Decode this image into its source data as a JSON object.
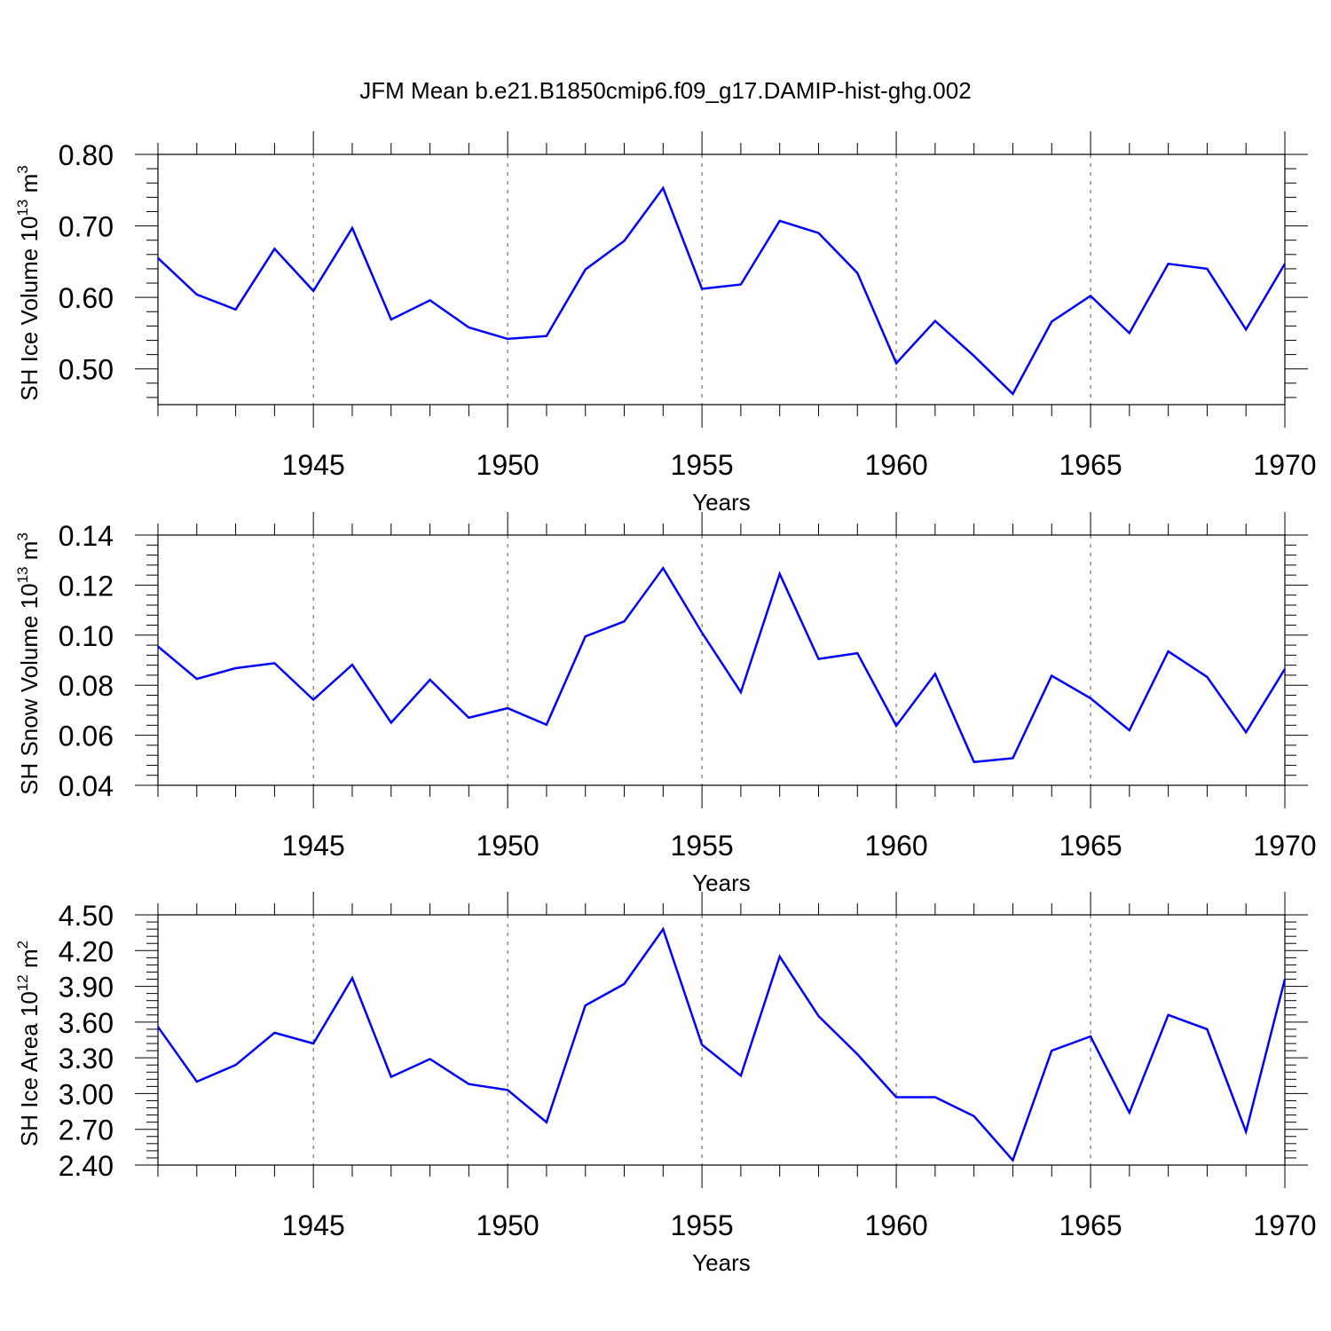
{
  "figure_title": "JFM Mean b.e21.B1850cmip6.f09_g17.DAMIP-hist-ghg.002",
  "line_color": "#0000ff",
  "chart_data": [
    {
      "type": "line",
      "title": "JFM Mean b.e21.B1850cmip6.f09_g17.DAMIP-hist-ghg.002",
      "ylabel": "SH Ice Volume 10",
      "ylabel_exp": "13",
      "ylabel_unit": "m",
      "ylabel_unit_exp": "3",
      "xlabel": "Years",
      "xlim": [
        1941,
        1970
      ],
      "ylim": [
        0.45,
        0.8
      ],
      "y_ticks": [
        0.5,
        0.6,
        0.7,
        0.8
      ],
      "y_tick_labels": [
        "0.50",
        "0.60",
        "0.70",
        "0.80"
      ],
      "x_ticks": [
        1945,
        1950,
        1955,
        1960,
        1965,
        1970
      ],
      "x_tick_labels": [
        "1945",
        "1950",
        "1955",
        "1960",
        "1965",
        "1970"
      ],
      "grid": "vertical dashed at major x ticks",
      "series": [
        {
          "name": "SH Ice Volume",
          "x": [
            1941,
            1942,
            1943,
            1944,
            1945,
            1946,
            1947,
            1948,
            1949,
            1950,
            1951,
            1952,
            1953,
            1954,
            1955,
            1956,
            1957,
            1958,
            1959,
            1960,
            1961,
            1962,
            1963,
            1964,
            1965,
            1966,
            1967,
            1968,
            1969,
            1970
          ],
          "values": [
            0.655,
            0.604,
            0.583,
            0.668,
            0.609,
            0.697,
            0.569,
            0.596,
            0.558,
            0.542,
            0.546,
            0.639,
            0.679,
            0.753,
            0.612,
            0.618,
            0.707,
            0.69,
            0.634,
            0.508,
            0.567,
            0.518,
            0.465,
            0.566,
            0.602,
            0.55,
            0.647,
            0.64,
            0.555,
            0.647
          ]
        }
      ]
    },
    {
      "type": "line",
      "title": "",
      "ylabel": "SH Snow Volume 10",
      "ylabel_exp": "13",
      "ylabel_unit": "m",
      "ylabel_unit_exp": "3",
      "xlabel": "Years",
      "xlim": [
        1941,
        1970
      ],
      "ylim": [
        0.04,
        0.14
      ],
      "y_ticks": [
        0.04,
        0.06,
        0.08,
        0.1,
        0.12,
        0.14
      ],
      "y_tick_labels": [
        "0.04",
        "0.06",
        "0.08",
        "0.10",
        "0.12",
        "0.14"
      ],
      "x_ticks": [
        1945,
        1950,
        1955,
        1960,
        1965,
        1970
      ],
      "x_tick_labels": [
        "1945",
        "1950",
        "1955",
        "1960",
        "1965",
        "1970"
      ],
      "grid": "vertical dashed at major x ticks",
      "series": [
        {
          "name": "SH Snow Volume",
          "x": [
            1941,
            1942,
            1943,
            1944,
            1945,
            1946,
            1947,
            1948,
            1949,
            1950,
            1951,
            1952,
            1953,
            1954,
            1955,
            1956,
            1957,
            1958,
            1959,
            1960,
            1961,
            1962,
            1963,
            1964,
            1965,
            1966,
            1967,
            1968,
            1969,
            1970
          ],
          "values": [
            0.0955,
            0.0825,
            0.0868,
            0.0888,
            0.0742,
            0.0882,
            0.065,
            0.0822,
            0.067,
            0.0708,
            0.0642,
            0.0995,
            0.1055,
            0.1268,
            0.101,
            0.0772,
            0.1245,
            0.0905,
            0.0928,
            0.0638,
            0.0845,
            0.0493,
            0.0508,
            0.0838,
            0.0748,
            0.062,
            0.0935,
            0.0833,
            0.0612,
            0.0865
          ]
        }
      ]
    },
    {
      "type": "line",
      "title": "",
      "ylabel": "SH Ice Area 10",
      "ylabel_exp": "12",
      "ylabel_unit": "m",
      "ylabel_unit_exp": "2",
      "xlabel": "Years",
      "xlim": [
        1941,
        1970
      ],
      "ylim": [
        2.4,
        4.5
      ],
      "y_ticks": [
        2.4,
        2.7,
        3.0,
        3.3,
        3.6,
        3.9,
        4.2,
        4.5
      ],
      "y_tick_labels": [
        "2.40",
        "2.70",
        "3.00",
        "3.30",
        "3.60",
        "3.90",
        "4.20",
        "4.50"
      ],
      "x_ticks": [
        1945,
        1950,
        1955,
        1960,
        1965,
        1970
      ],
      "x_tick_labels": [
        "1945",
        "1950",
        "1955",
        "1960",
        "1965",
        "1970"
      ],
      "grid": "vertical dashed at major x ticks",
      "series": [
        {
          "name": "SH Ice Area",
          "x": [
            1941,
            1942,
            1943,
            1944,
            1945,
            1946,
            1947,
            1948,
            1949,
            1950,
            1951,
            1952,
            1953,
            1954,
            1955,
            1956,
            1957,
            1958,
            1959,
            1960,
            1961,
            1962,
            1963,
            1964,
            1965,
            1966,
            1967,
            1968,
            1969,
            1970
          ],
          "values": [
            3.56,
            3.1,
            3.24,
            3.51,
            3.42,
            3.97,
            3.14,
            3.29,
            3.08,
            3.03,
            2.76,
            3.74,
            3.92,
            4.38,
            3.41,
            3.15,
            4.15,
            3.65,
            3.33,
            2.97,
            2.97,
            2.81,
            2.44,
            3.36,
            3.48,
            2.84,
            3.66,
            3.54,
            2.68,
            3.96
          ]
        }
      ]
    }
  ]
}
